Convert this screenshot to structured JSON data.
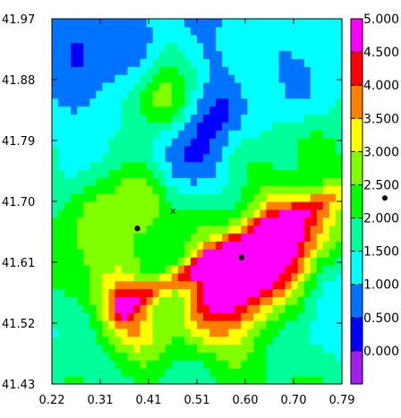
{
  "chart_data": {
    "type": "heatmap",
    "title": "",
    "xlabel": "",
    "ylabel": "",
    "x_ticks": [
      "0.22",
      "0.31",
      "0.41",
      "0.51",
      "0.60",
      "0.70",
      "0.79"
    ],
    "y_ticks": [
      "41.97",
      "41.88",
      "41.79",
      "41.70",
      "41.61",
      "41.52",
      "41.43"
    ],
    "xlim": [
      0.22,
      0.79
    ],
    "ylim": [
      41.43,
      41.97
    ],
    "grid": false,
    "colorbar": {
      "levels": [
        0.0,
        0.5,
        1.0,
        1.5,
        2.0,
        2.5,
        3.0,
        3.5,
        4.0,
        4.5,
        5.0
      ],
      "labels": [
        "0.000",
        "0.500",
        "1.000",
        "1.500",
        "2.000",
        "2.500",
        "3.000",
        "3.500",
        "4.000",
        "4.500",
        "5.000"
      ],
      "colors": [
        "#a020f0",
        "#0000ff",
        "#0073ff",
        "#00ffff",
        "#00ff9a",
        "#00ff00",
        "#80ff00",
        "#ffff00",
        "#ff8000",
        "#ff0000",
        "#ff00ff"
      ]
    },
    "markers": [
      {
        "kind": "point",
        "x": 0.388,
        "y": 41.66
      },
      {
        "kind": "point",
        "x": 0.593,
        "y": 41.617
      },
      {
        "kind": "cross",
        "label": "x",
        "x": 0.458,
        "y": 41.687
      }
    ],
    "colorbar_marker": {
      "kind": "point",
      "value": 2.3
    },
    "field_peaks": [
      {
        "x": 0.28,
        "y": 41.95,
        "value": -0.6,
        "radius": 0.05
      },
      {
        "x": 0.35,
        "y": 41.86,
        "value": -0.4,
        "radius": 0.07
      },
      {
        "x": 0.46,
        "y": 41.75,
        "value": -0.5,
        "radius": 0.04
      },
      {
        "x": 0.52,
        "y": 41.76,
        "value": -0.8,
        "radius": 0.05
      },
      {
        "x": 0.53,
        "y": 41.83,
        "value": -0.6,
        "radius": 0.04
      },
      {
        "x": 0.62,
        "y": 41.93,
        "value": -0.2,
        "radius": 0.06
      },
      {
        "x": 0.75,
        "y": 41.88,
        "value": -0.1,
        "radius": 0.05
      },
      {
        "x": 0.7,
        "y": 41.7,
        "value": -0.5,
        "radius": 0.05
      },
      {
        "x": 0.73,
        "y": 41.56,
        "value": -0.3,
        "radius": 0.05
      },
      {
        "x": 0.24,
        "y": 41.5,
        "value": -0.3,
        "radius": 0.04
      },
      {
        "x": 0.43,
        "y": 41.85,
        "value": 1.6,
        "radius": 0.04
      },
      {
        "x": 0.3,
        "y": 41.69,
        "value": 1.2,
        "radius": 0.04
      },
      {
        "x": 0.4,
        "y": 41.72,
        "value": 1.5,
        "radius": 0.04
      },
      {
        "x": 0.42,
        "y": 41.61,
        "value": 0.6,
        "radius": 0.05
      },
      {
        "x": 0.33,
        "y": 41.57,
        "value": 1.2,
        "radius": 0.04
      },
      {
        "x": 0.52,
        "y": 41.65,
        "value": 0.6,
        "radius": 0.05
      },
      {
        "x": 0.36,
        "y": 41.54,
        "value": 1.4,
        "radius": 0.035
      },
      {
        "x": 0.4,
        "y": 41.5,
        "value": 0.8,
        "radius": 0.04
      },
      {
        "x": 0.55,
        "y": 41.57,
        "value": 2.2,
        "radius": 0.045
      },
      {
        "x": 0.62,
        "y": 41.61,
        "value": 1.8,
        "radius": 0.05
      },
      {
        "x": 0.66,
        "y": 41.64,
        "value": 1.9,
        "radius": 0.05
      },
      {
        "x": 0.7,
        "y": 41.66,
        "value": 1.6,
        "radius": 0.05
      },
      {
        "x": 0.76,
        "y": 41.69,
        "value": 1.3,
        "radius": 0.04
      },
      {
        "x": 0.5,
        "y": 41.52,
        "value": 1.0,
        "radius": 0.04
      },
      {
        "x": 0.61,
        "y": 41.53,
        "value": 0.7,
        "radius": 0.05
      },
      {
        "x": 0.6,
        "y": 41.47,
        "value": 0.6,
        "radius": 0.04
      },
      {
        "x": 0.27,
        "y": 41.63,
        "value": 0.5,
        "radius": 0.05
      },
      {
        "x": 0.58,
        "y": 41.77,
        "value": 0.7,
        "radius": 0.035
      },
      {
        "x": 0.73,
        "y": 41.78,
        "value": 0.7,
        "radius": 0.04
      }
    ]
  }
}
